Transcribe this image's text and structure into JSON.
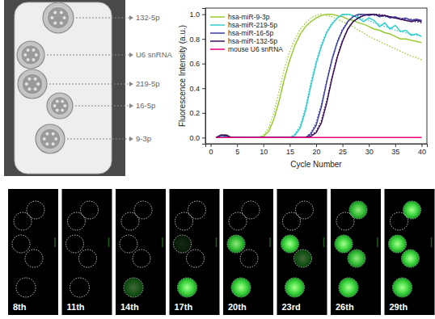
{
  "chip_photo": {
    "labels": [
      "132-5p",
      "U6 snRNA",
      "219-5p",
      "16-5p",
      "9-3p"
    ]
  },
  "chart_data": {
    "type": "line",
    "x_label": "Cycle Number",
    "y_label": "Fluorescence Intensity (a.u.)",
    "x": [
      1,
      2,
      3,
      4,
      5,
      6,
      7,
      8,
      9,
      10,
      11,
      12,
      13,
      14,
      15,
      16,
      17,
      18,
      19,
      20,
      21,
      22,
      23,
      24,
      25,
      26,
      27,
      28,
      29,
      30,
      31,
      32,
      33,
      34,
      35,
      36,
      37,
      38,
      39,
      40
    ],
    "series": [
      {
        "name": "hsa-miR-9-3p",
        "color": "#99cc33",
        "line_style": "solid",
        "values": [
          0,
          0.02,
          0.02,
          0,
          0,
          0,
          0,
          0,
          0,
          0.01,
          0.05,
          0.15,
          0.3,
          0.48,
          0.63,
          0.75,
          0.84,
          0.9,
          0.94,
          0.97,
          0.99,
          1,
          1,
          0.99,
          0.98,
          0.96,
          0.95,
          0.93,
          0.92,
          0.9,
          0.88,
          0.87,
          0.85,
          0.84,
          0.82,
          0.8,
          0.8,
          0.79,
          0.78,
          0.77
        ],
        "fit": [
          0,
          0,
          0,
          0,
          0,
          0,
          0,
          0,
          0,
          0.02,
          0.08,
          0.2,
          0.38,
          0.56,
          0.7,
          0.8,
          0.88,
          0.93,
          0.97,
          0.99,
          1,
          0.99,
          0.98,
          0.96,
          0.94,
          0.92,
          0.9,
          0.87,
          0.85,
          0.82,
          0.8,
          0.78,
          0.76,
          0.74,
          0.72,
          0.7,
          0.68,
          0.66,
          0.65,
          0.63
        ]
      },
      {
        "name": "hsa-miR-219-5p",
        "color": "#33cccc",
        "line_style": "solid",
        "values": [
          0,
          0.01,
          0.01,
          0,
          0,
          0,
          0,
          0,
          0,
          0,
          0,
          0,
          0,
          0,
          0,
          0.02,
          0.08,
          0.22,
          0.42,
          0.6,
          0.74,
          0.85,
          0.92,
          0.97,
          1,
          1,
          0.99,
          0.97,
          0.94,
          0.97,
          0.95,
          0.9,
          0.93,
          0.88,
          0.91,
          0.86,
          0.87,
          0.83,
          0.84,
          0.82
        ],
        "fit": [
          0,
          0,
          0,
          0,
          0,
          0,
          0,
          0,
          0,
          0,
          0,
          0,
          0,
          0,
          0,
          0.03,
          0.1,
          0.25,
          0.45,
          0.62,
          0.76,
          0.86,
          0.93,
          0.97,
          0.99,
          1,
          0.99,
          0.98,
          0.96,
          0.95,
          0.93,
          0.92,
          0.9,
          0.89,
          0.87,
          0.86,
          0.85,
          0.84,
          0.83,
          0.82
        ]
      },
      {
        "name": "hsa-miR-16-5p",
        "color": "#3f3fa0",
        "line_style": "solid",
        "values": [
          0,
          0.02,
          0.01,
          0,
          0,
          0,
          0,
          0,
          0,
          0,
          0,
          0,
          0,
          0,
          0,
          0,
          0,
          0,
          0.03,
          0.1,
          0.25,
          0.45,
          0.63,
          0.77,
          0.87,
          0.94,
          0.98,
          1,
          1,
          0.99,
          1,
          0.98,
          0.99,
          0.97,
          0.98,
          0.96,
          0.97,
          0.95,
          0.96,
          0.95
        ],
        "fit": [
          0,
          0,
          0,
          0,
          0,
          0,
          0,
          0,
          0,
          0,
          0,
          0,
          0,
          0,
          0,
          0,
          0,
          0,
          0.04,
          0.12,
          0.27,
          0.46,
          0.64,
          0.78,
          0.88,
          0.94,
          0.98,
          0.99,
          1,
          1,
          0.99,
          0.99,
          0.98,
          0.98,
          0.97,
          0.97,
          0.96,
          0.96,
          0.95,
          0.95
        ]
      },
      {
        "name": "hsa-miR-132-5p",
        "color": "#3b0f5a",
        "line_style": "solid",
        "values": [
          0,
          0.02,
          0.02,
          0,
          0,
          0,
          0,
          0,
          0,
          0,
          0,
          0,
          0,
          0,
          0,
          0,
          0,
          0,
          0.01,
          0.04,
          0.12,
          0.28,
          0.48,
          0.65,
          0.78,
          0.88,
          0.94,
          0.97,
          0.99,
          1,
          1,
          0.99,
          0.99,
          0.98,
          0.97,
          0.96,
          0.95,
          0.94,
          0.95,
          0.94
        ],
        "fit": [
          0,
          0,
          0,
          0,
          0,
          0,
          0,
          0,
          0,
          0,
          0,
          0,
          0,
          0,
          0,
          0,
          0,
          0,
          0.02,
          0.05,
          0.14,
          0.3,
          0.49,
          0.66,
          0.79,
          0.88,
          0.94,
          0.97,
          0.99,
          1,
          1,
          1,
          0.99,
          0.98,
          0.97,
          0.96,
          0.95,
          0.94,
          0.94,
          0.93
        ]
      },
      {
        "name": "mouse U6 snRNA",
        "color": "#e6007e",
        "line_style": "solid",
        "values": [
          0,
          0,
          0,
          0,
          0,
          0,
          0,
          0,
          0,
          0,
          0,
          0,
          0,
          0,
          0,
          0,
          0,
          0,
          0,
          0,
          0,
          0,
          0,
          0,
          0,
          0,
          0,
          0,
          0,
          0,
          0,
          0,
          0,
          0,
          0,
          0,
          0,
          0,
          0,
          0
        ]
      }
    ],
    "xlim": [
      -1,
      41
    ],
    "xticks": [
      0,
      5,
      10,
      15,
      20,
      25,
      30,
      35,
      40
    ],
    "ylim": [
      -0.05,
      1.05
    ],
    "yticks": [
      {
        "value": 0,
        "label": "0.0"
      },
      0.2,
      0.4,
      0.6,
      0.8,
      {
        "value": 1,
        "label": "1.0"
      }
    ],
    "grid": false,
    "legend": "upper left"
  },
  "image_sequence": {
    "labels": [
      "8th",
      "11th",
      "14th",
      "17th",
      "20th",
      "23rd",
      "26th",
      "29th"
    ],
    "intensity": [
      [
        0,
        0,
        0,
        0,
        0
      ],
      [
        0,
        0,
        0,
        0,
        0
      ],
      [
        0,
        0,
        0,
        0,
        0.4
      ],
      [
        0,
        0,
        0.15,
        0,
        1
      ],
      [
        0,
        0,
        0.9,
        0,
        1
      ],
      [
        0,
        0,
        1,
        0.4,
        1
      ],
      [
        0.9,
        0,
        1,
        0.9,
        1
      ],
      [
        1,
        0,
        1,
        1,
        1
      ]
    ]
  }
}
